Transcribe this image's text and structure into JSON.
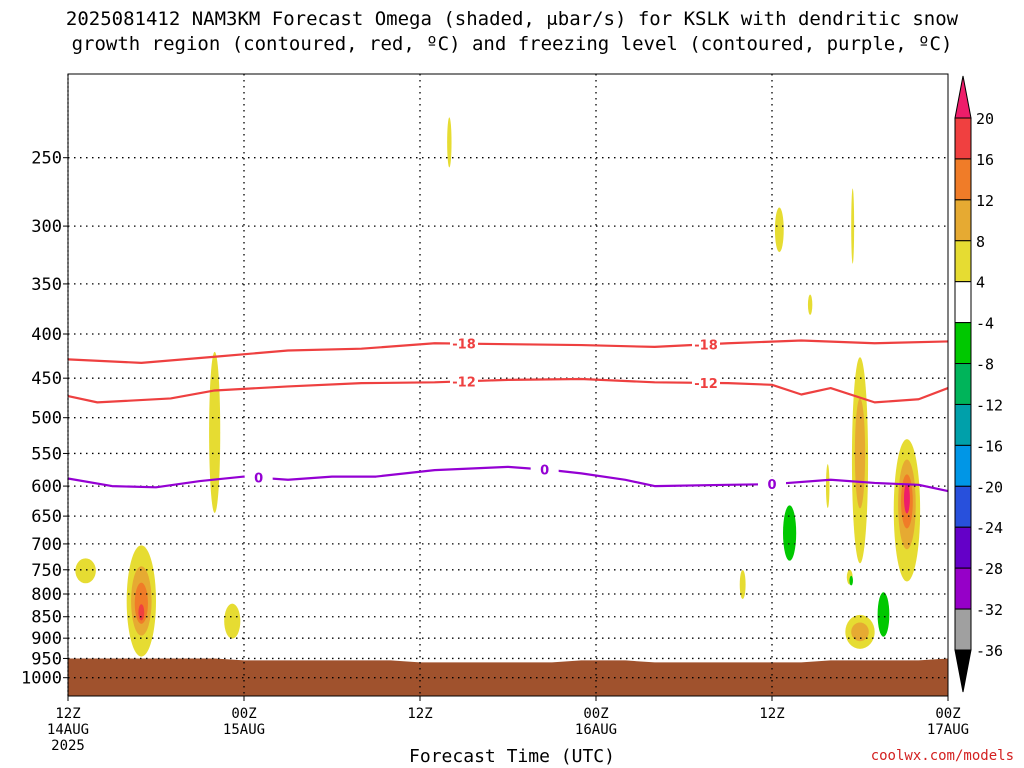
{
  "title": {
    "line1": "2025081412 NAM3KM Forecast Omega (shaded, μbar/s) for KSLK with dendritic snow",
    "line2": "growth region (contoured, red, ºC) and freezing level (contoured, purple, ºC)"
  },
  "xlabel": "Forecast Time (UTC)",
  "credit": "coolwx.com/models",
  "colors": {
    "isotherm": "#ee4040",
    "freezing": "#9400d3",
    "terrain": "#a0522d"
  },
  "chart_data": {
    "type": "heatmap",
    "y_scale": "log-pressure",
    "y_range_hPa": [
      1050,
      200
    ],
    "x_range_hours": [
      0,
      60
    ],
    "y_ticks": [
      "250",
      "300",
      "350",
      "400",
      "450",
      "500",
      "550",
      "600",
      "650",
      "700",
      "750",
      "800",
      "850",
      "900",
      "950",
      "1000"
    ],
    "x_ticks": [
      {
        "hour": 0,
        "lines": [
          "12Z",
          "14AUG",
          "2025"
        ]
      },
      {
        "hour": 12,
        "lines": [
          "00Z",
          "15AUG"
        ]
      },
      {
        "hour": 24,
        "lines": [
          "12Z"
        ]
      },
      {
        "hour": 36,
        "lines": [
          "00Z",
          "16AUG"
        ]
      },
      {
        "hour": 48,
        "lines": [
          "12Z"
        ]
      },
      {
        "hour": 60,
        "lines": [
          "00Z",
          "17AUG"
        ]
      }
    ],
    "colorbar": {
      "labels": [
        "20",
        "16",
        "12",
        "8",
        "4",
        "-4",
        "-8",
        "-12",
        "-16",
        "-20",
        "-24",
        "-28",
        "-32",
        "-36"
      ],
      "colors": [
        "#ee1d6a",
        "#f04040",
        "#f07c28",
        "#e6aa32",
        "#e6dc32",
        "#ffffff",
        "#00c800",
        "#00b45a",
        "#00a0aa",
        "#0096e6",
        "#2850dc",
        "#6400c8",
        "#9600c8",
        "#a0a0a0",
        "#000000"
      ]
    },
    "contours": [
      {
        "label": "-18",
        "color": "#ee4040",
        "label_hours": [
          27,
          43.5
        ],
        "points": [
          [
            0,
            428
          ],
          [
            5,
            432
          ],
          [
            10,
            425
          ],
          [
            15,
            418
          ],
          [
            20,
            416
          ],
          [
            25,
            410
          ],
          [
            30,
            411
          ],
          [
            35,
            412
          ],
          [
            40,
            414
          ],
          [
            45,
            410
          ],
          [
            50,
            407
          ],
          [
            55,
            410
          ],
          [
            60,
            408
          ]
        ]
      },
      {
        "label": "-12",
        "color": "#ee4040",
        "label_hours": [
          27,
          43.5
        ],
        "points": [
          [
            0,
            472
          ],
          [
            2,
            480
          ],
          [
            7,
            475
          ],
          [
            10,
            465
          ],
          [
            15,
            460
          ],
          [
            20,
            456
          ],
          [
            25,
            455
          ],
          [
            30,
            452
          ],
          [
            35,
            451
          ],
          [
            40,
            455
          ],
          [
            45,
            456
          ],
          [
            48,
            458
          ],
          [
            50,
            470
          ],
          [
            52,
            462
          ],
          [
            55,
            480
          ],
          [
            58,
            476
          ],
          [
            60,
            462
          ]
        ]
      },
      {
        "label": "0",
        "color": "#9400d3",
        "label_hours": [
          13,
          32.5,
          48
        ],
        "points": [
          [
            0,
            588
          ],
          [
            3,
            600
          ],
          [
            6,
            602
          ],
          [
            9,
            592
          ],
          [
            12,
            585
          ],
          [
            15,
            590
          ],
          [
            18,
            585
          ],
          [
            21,
            585
          ],
          [
            25,
            575
          ],
          [
            30,
            570
          ],
          [
            33,
            575
          ],
          [
            35,
            580
          ],
          [
            38,
            590
          ],
          [
            40,
            600
          ],
          [
            45,
            598
          ],
          [
            48,
            597
          ],
          [
            52,
            590
          ],
          [
            55,
            595
          ],
          [
            58,
            598
          ],
          [
            60,
            608
          ]
        ]
      }
    ],
    "omega_blobs": [
      {
        "t": 1.2,
        "p": 752,
        "dt": 0.7,
        "dp": 25,
        "level": 4
      },
      {
        "t": 5.0,
        "p": 815,
        "dt": 1.0,
        "dp": 120,
        "level": 4
      },
      {
        "t": 5.0,
        "p": 815,
        "dt": 0.7,
        "dp": 75,
        "level": 8
      },
      {
        "t": 5.0,
        "p": 820,
        "dt": 0.45,
        "dp": 45,
        "level": 12
      },
      {
        "t": 5.0,
        "p": 840,
        "dt": 0.2,
        "dp": 18,
        "level": 16
      },
      {
        "t": 10.0,
        "p": 520,
        "dt": 0.38,
        "dp": 110,
        "level": 4
      },
      {
        "t": 11.2,
        "p": 860,
        "dt": 0.55,
        "dp": 40,
        "level": 4
      },
      {
        "t": 26.0,
        "p": 240,
        "dt": 0.15,
        "dp": 16,
        "level": 4
      },
      {
        "t": 46.0,
        "p": 780,
        "dt": 0.2,
        "dp": 30,
        "level": 4
      },
      {
        "t": 48.5,
        "p": 303,
        "dt": 0.3,
        "dp": 18,
        "level": 4
      },
      {
        "t": 50.6,
        "p": 370,
        "dt": 0.15,
        "dp": 10,
        "level": 4
      },
      {
        "t": 49.2,
        "p": 680,
        "dt": 0.45,
        "dp": 50,
        "level": -4
      },
      {
        "t": 51.8,
        "p": 600,
        "dt": 0.12,
        "dp": 35,
        "level": 4
      },
      {
        "t": 53.5,
        "p": 300,
        "dt": 0.1,
        "dp": 30,
        "level": 4
      },
      {
        "t": 53.3,
        "p": 765,
        "dt": 0.2,
        "dp": 15,
        "level": 4
      },
      {
        "t": 53.4,
        "p": 772,
        "dt": 0.12,
        "dp": 10,
        "level": -4
      },
      {
        "t": 54.0,
        "p": 560,
        "dt": 0.55,
        "dp": 150,
        "level": 4
      },
      {
        "t": 54.0,
        "p": 550,
        "dt": 0.35,
        "dp": 80,
        "level": 8
      },
      {
        "t": 54.0,
        "p": 885,
        "dt": 1.0,
        "dp": 40,
        "level": 4
      },
      {
        "t": 54.0,
        "p": 885,
        "dt": 0.6,
        "dp": 22,
        "level": 8
      },
      {
        "t": 55.6,
        "p": 845,
        "dt": 0.4,
        "dp": 50,
        "level": -4
      },
      {
        "t": 57.2,
        "p": 640,
        "dt": 0.9,
        "dp": 120,
        "level": 4
      },
      {
        "t": 57.2,
        "p": 630,
        "dt": 0.6,
        "dp": 75,
        "level": 8
      },
      {
        "t": 57.2,
        "p": 625,
        "dt": 0.4,
        "dp": 45,
        "level": 12
      },
      {
        "t": 57.2,
        "p": 620,
        "dt": 0.2,
        "dp": 25,
        "level": 20
      }
    ],
    "terrain": [
      [
        0,
        950
      ],
      [
        10,
        950
      ],
      [
        12,
        955
      ],
      [
        22,
        955
      ],
      [
        24,
        960
      ],
      [
        33,
        960
      ],
      [
        35,
        955
      ],
      [
        38,
        955
      ],
      [
        40,
        960
      ],
      [
        50,
        960
      ],
      [
        52,
        955
      ],
      [
        58,
        955
      ],
      [
        60,
        950
      ]
    ]
  }
}
